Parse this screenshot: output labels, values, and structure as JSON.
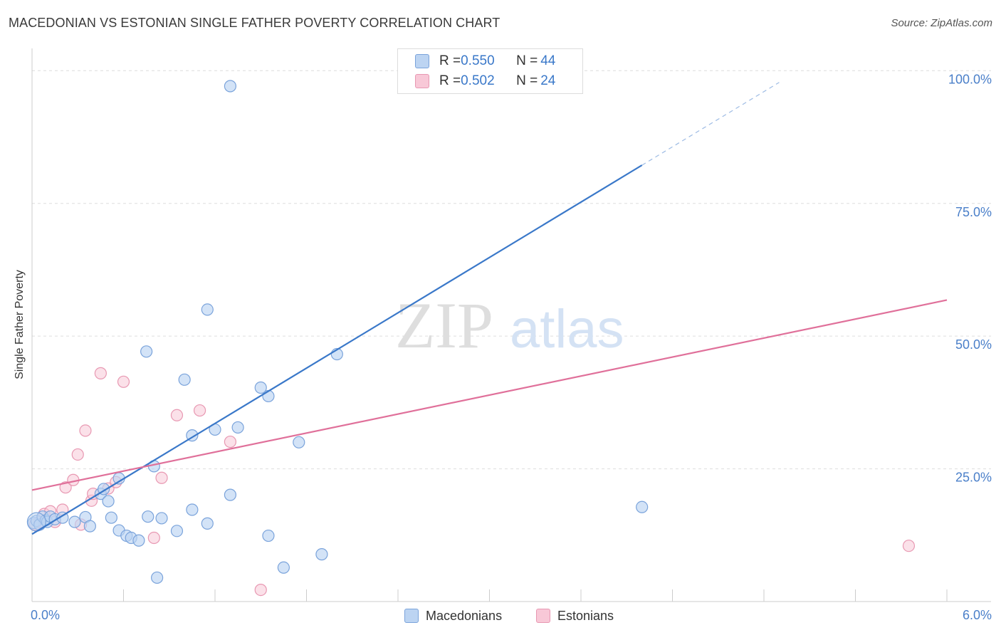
{
  "title": "MACEDONIAN VS ESTONIAN SINGLE FATHER POVERTY CORRELATION CHART",
  "source": "Source: ZipAtlas.com",
  "watermark": {
    "part1": "ZIP",
    "part2": "atlas"
  },
  "legend_top": {
    "rows": [
      {
        "r_label": "R = ",
        "r_value": "0.550",
        "n_label": "N = ",
        "n_value": "44"
      },
      {
        "r_label": "R = ",
        "r_value": "0.502",
        "n_label": "N = ",
        "n_value": "24"
      }
    ]
  },
  "legend_bottom": {
    "items": [
      "Macedonians",
      "Estonians"
    ]
  },
  "chart_data": {
    "type": "scatter",
    "title": "MACEDONIAN VS ESTONIAN SINGLE FATHER POVERTY CORRELATION CHART",
    "xlabel": "",
    "ylabel": "Single Father Poverty",
    "xlim": [
      0,
      6
    ],
    "ylim": [
      0,
      103
    ],
    "x_tick_labels": [
      "0.0%",
      "6.0%"
    ],
    "y_ticks": [
      25,
      50,
      75,
      100
    ],
    "y_tick_labels": [
      "25.0%",
      "50.0%",
      "75.0%",
      "100.0%"
    ],
    "grid": true,
    "legend_position": "bottom",
    "colors": {
      "Macedonians": "#3a78c9",
      "Estonians": "#e0709a"
    },
    "series": [
      {
        "name": "Macedonians",
        "stats": {
          "R": 0.55,
          "N": 44
        },
        "trend": {
          "x": [
            0.0,
            4.0
          ],
          "y": [
            12.7,
            82.2
          ],
          "dashed_extension_to": [
            4.9,
            97.8
          ]
        },
        "points": [
          {
            "x": 0.01,
            "y": 14.8
          },
          {
            "x": 0.03,
            "y": 15.2
          },
          {
            "x": 0.05,
            "y": 14.5
          },
          {
            "x": 0.07,
            "y": 16.0
          },
          {
            "x": 0.09,
            "y": 15.3
          },
          {
            "x": 0.1,
            "y": 15.0
          },
          {
            "x": 0.12,
            "y": 16.0
          },
          {
            "x": 0.15,
            "y": 15.5
          },
          {
            "x": 0.2,
            "y": 15.8
          },
          {
            "x": 0.28,
            "y": 15.0
          },
          {
            "x": 0.35,
            "y": 15.9
          },
          {
            "x": 0.38,
            "y": 14.2
          },
          {
            "x": 0.45,
            "y": 20.3
          },
          {
            "x": 0.47,
            "y": 21.2
          },
          {
            "x": 0.5,
            "y": 18.9
          },
          {
            "x": 0.52,
            "y": 15.8
          },
          {
            "x": 0.57,
            "y": 13.4
          },
          {
            "x": 0.57,
            "y": 23.2
          },
          {
            "x": 0.62,
            "y": 12.4
          },
          {
            "x": 0.65,
            "y": 12.0
          },
          {
            "x": 0.7,
            "y": 11.5
          },
          {
            "x": 0.76,
            "y": 16.0
          },
          {
            "x": 0.75,
            "y": 47.1
          },
          {
            "x": 0.8,
            "y": 25.5
          },
          {
            "x": 0.82,
            "y": 4.5
          },
          {
            "x": 0.85,
            "y": 15.7
          },
          {
            "x": 0.95,
            "y": 13.3
          },
          {
            "x": 1.0,
            "y": 41.8
          },
          {
            "x": 1.05,
            "y": 17.3
          },
          {
            "x": 1.05,
            "y": 31.3
          },
          {
            "x": 1.15,
            "y": 14.7
          },
          {
            "x": 1.15,
            "y": 55.0
          },
          {
            "x": 1.2,
            "y": 32.4
          },
          {
            "x": 1.3,
            "y": 20.1
          },
          {
            "x": 1.3,
            "y": 97.1
          },
          {
            "x": 1.35,
            "y": 32.8
          },
          {
            "x": 1.5,
            "y": 40.3
          },
          {
            "x": 1.55,
            "y": 12.4
          },
          {
            "x": 1.55,
            "y": 38.7
          },
          {
            "x": 1.65,
            "y": 6.4
          },
          {
            "x": 1.75,
            "y": 30.0
          },
          {
            "x": 1.9,
            "y": 8.9
          },
          {
            "x": 2.0,
            "y": 46.6
          },
          {
            "x": 4.0,
            "y": 17.8
          }
        ]
      },
      {
        "name": "Estonians",
        "stats": {
          "R": 0.502,
          "N": 24
        },
        "trend": {
          "x": [
            0.0,
            6.0
          ],
          "y": [
            21.0,
            56.8
          ]
        },
        "points": [
          {
            "x": 0.02,
            "y": 14.5
          },
          {
            "x": 0.05,
            "y": 15.0
          },
          {
            "x": 0.08,
            "y": 16.5
          },
          {
            "x": 0.12,
            "y": 17.0
          },
          {
            "x": 0.15,
            "y": 15.0
          },
          {
            "x": 0.2,
            "y": 17.3
          },
          {
            "x": 0.22,
            "y": 21.5
          },
          {
            "x": 0.27,
            "y": 22.9
          },
          {
            "x": 0.3,
            "y": 27.7
          },
          {
            "x": 0.32,
            "y": 14.5
          },
          {
            "x": 0.35,
            "y": 32.2
          },
          {
            "x": 0.39,
            "y": 19.0
          },
          {
            "x": 0.4,
            "y": 20.3
          },
          {
            "x": 0.45,
            "y": 43.0
          },
          {
            "x": 0.5,
            "y": 21.3
          },
          {
            "x": 0.55,
            "y": 22.5
          },
          {
            "x": 0.6,
            "y": 41.4
          },
          {
            "x": 0.8,
            "y": 12.0
          },
          {
            "x": 0.85,
            "y": 23.3
          },
          {
            "x": 0.95,
            "y": 35.1
          },
          {
            "x": 1.1,
            "y": 36.0
          },
          {
            "x": 1.3,
            "y": 30.1
          },
          {
            "x": 1.5,
            "y": 2.2
          },
          {
            "x": 5.75,
            "y": 10.5
          }
        ]
      }
    ]
  }
}
